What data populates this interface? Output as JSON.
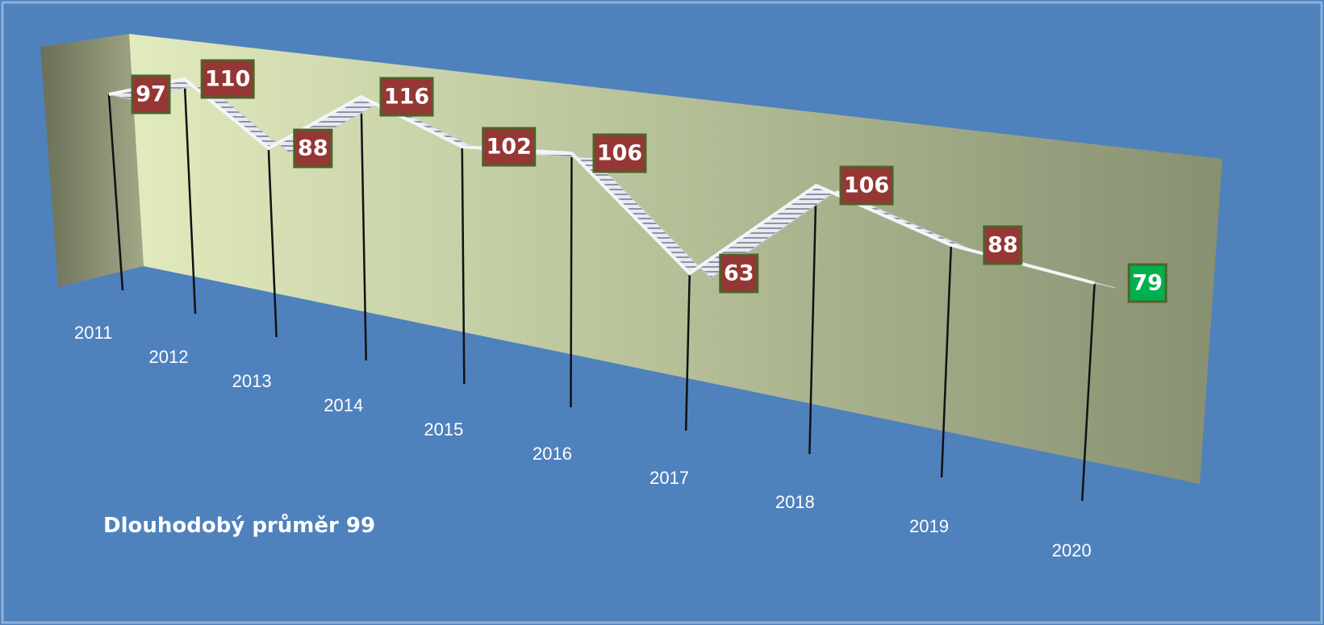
{
  "chart_data": {
    "type": "line3d",
    "categories": [
      "2011",
      "2012",
      "2013",
      "2014",
      "2015",
      "2016",
      "2017",
      "2018",
      "2019",
      "2020"
    ],
    "values": [
      97,
      110,
      88,
      116,
      102,
      106,
      63,
      106,
      88,
      79
    ],
    "color": "#c8ccd6",
    "label_colors": [
      "#953735",
      "#953735",
      "#953735",
      "#953735",
      "#953735",
      "#953735",
      "#953735",
      "#953735",
      "#953735",
      "#00b050"
    ],
    "annotation": "Dlouhodobý průměr 99"
  }
}
